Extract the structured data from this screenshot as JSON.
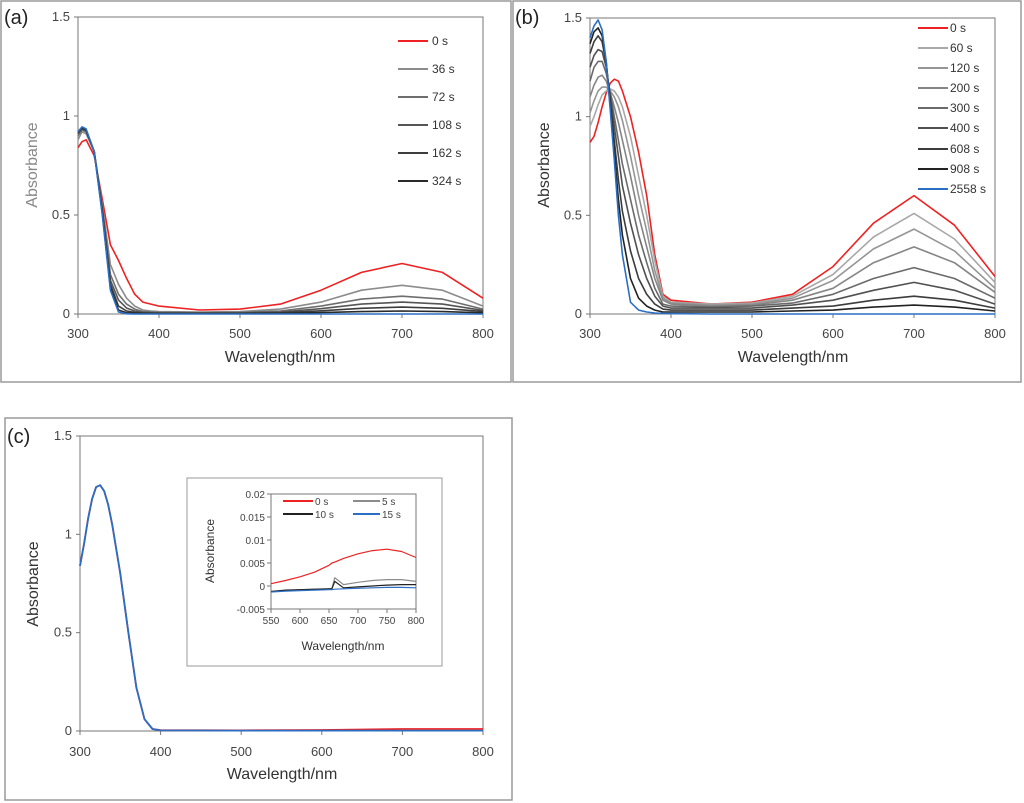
{
  "chart_data": [
    {
      "panel": "(a)",
      "type": "line",
      "xlabel": "Wavelength/nm",
      "ylabel": "Absorbance",
      "xlim": [
        300,
        800
      ],
      "ylim": [
        0,
        1.5
      ],
      "xticks": [
        "300",
        "400",
        "500",
        "600",
        "700",
        "800"
      ],
      "yticks": [
        "0",
        "0.5",
        "1",
        "1.5"
      ],
      "legend_position": "top-right",
      "x": [
        300,
        305,
        310,
        320,
        330,
        340,
        350,
        360,
        370,
        380,
        390,
        400,
        450,
        500,
        550,
        600,
        650,
        700,
        750,
        800
      ],
      "series": [
        {
          "name": "0 s",
          "color": "#ee2222",
          "values": [
            0.84,
            0.87,
            0.88,
            0.8,
            0.58,
            0.35,
            0.27,
            0.18,
            0.1,
            0.06,
            0.05,
            0.04,
            0.02,
            0.025,
            0.05,
            0.12,
            0.21,
            0.255,
            0.21,
            0.08
          ]
        },
        {
          "name": "36 s",
          "color": "#8c8c8c",
          "values": [
            0.88,
            0.92,
            0.91,
            0.82,
            0.55,
            0.25,
            0.15,
            0.08,
            0.04,
            0.02,
            0.015,
            0.012,
            0.01,
            0.012,
            0.025,
            0.06,
            0.12,
            0.145,
            0.12,
            0.04
          ]
        },
        {
          "name": "72 s",
          "color": "#6e6e6e",
          "values": [
            0.9,
            0.93,
            0.92,
            0.82,
            0.54,
            0.2,
            0.1,
            0.05,
            0.025,
            0.012,
            0.01,
            0.008,
            0.006,
            0.008,
            0.015,
            0.04,
            0.075,
            0.09,
            0.075,
            0.025
          ]
        },
        {
          "name": "108 s",
          "color": "#555555",
          "values": [
            0.91,
            0.935,
            0.925,
            0.82,
            0.53,
            0.17,
            0.07,
            0.03,
            0.015,
            0.008,
            0.006,
            0.005,
            0.004,
            0.005,
            0.01,
            0.027,
            0.05,
            0.06,
            0.05,
            0.018
          ]
        },
        {
          "name": "162 s",
          "color": "#3d3d3d",
          "values": [
            0.915,
            0.94,
            0.93,
            0.82,
            0.52,
            0.15,
            0.04,
            0.015,
            0.008,
            0.005,
            0.004,
            0.003,
            0.003,
            0.003,
            0.006,
            0.016,
            0.029,
            0.035,
            0.029,
            0.012
          ]
        },
        {
          "name": "324 s",
          "color": "#2a2a2a",
          "values": [
            0.92,
            0.94,
            0.93,
            0.82,
            0.51,
            0.13,
            0.02,
            0.006,
            0.004,
            0.003,
            0.002,
            0.002,
            0.002,
            0.002,
            0.003,
            0.007,
            0.012,
            0.015,
            0.012,
            0.006
          ]
        },
        {
          "name": "",
          "color": "#2a6fc4",
          "values": [
            0.92,
            0.945,
            0.935,
            0.82,
            0.5,
            0.12,
            0.01,
            0.001,
            0,
            0,
            0,
            0,
            0,
            0,
            0,
            0,
            0,
            0,
            0,
            0
          ]
        }
      ]
    },
    {
      "panel": "(b)",
      "type": "line",
      "xlabel": "Wavelength/nm",
      "ylabel": "Absorbance",
      "xlim": [
        300,
        800
      ],
      "ylim": [
        0,
        1.5
      ],
      "xticks": [
        "300",
        "400",
        "500",
        "600",
        "700",
        "800"
      ],
      "yticks": [
        "0",
        "0.5",
        "1",
        "1.5"
      ],
      "legend_position": "top-right",
      "x": [
        300,
        305,
        310,
        315,
        320,
        325,
        330,
        335,
        340,
        350,
        360,
        370,
        380,
        390,
        400,
        450,
        500,
        550,
        600,
        650,
        700,
        750,
        800
      ],
      "series": [
        {
          "name": "0 s",
          "color": "#ee2222",
          "values": [
            0.87,
            0.9,
            0.97,
            1.05,
            1.12,
            1.17,
            1.19,
            1.18,
            1.13,
            1.0,
            0.82,
            0.6,
            0.3,
            0.1,
            0.07,
            0.05,
            0.06,
            0.1,
            0.24,
            0.46,
            0.6,
            0.45,
            0.19
          ]
        },
        {
          "name": "60 s",
          "color": "#a8a8a8",
          "values": [
            0.95,
            1.0,
            1.06,
            1.11,
            1.13,
            1.14,
            1.13,
            1.1,
            1.05,
            0.9,
            0.7,
            0.5,
            0.27,
            0.09,
            0.06,
            0.05,
            0.055,
            0.09,
            0.2,
            0.39,
            0.51,
            0.38,
            0.16
          ]
        },
        {
          "name": "120 s",
          "color": "#959595",
          "values": [
            1.02,
            1.08,
            1.13,
            1.15,
            1.15,
            1.13,
            1.1,
            1.05,
            0.98,
            0.8,
            0.6,
            0.42,
            0.22,
            0.08,
            0.055,
            0.045,
            0.05,
            0.08,
            0.17,
            0.33,
            0.43,
            0.32,
            0.13
          ]
        },
        {
          "name": "200 s",
          "color": "#858585",
          "values": [
            1.1,
            1.16,
            1.2,
            1.21,
            1.18,
            1.12,
            1.05,
            0.97,
            0.88,
            0.7,
            0.5,
            0.34,
            0.18,
            0.07,
            0.05,
            0.04,
            0.045,
            0.07,
            0.13,
            0.26,
            0.34,
            0.26,
            0.11
          ]
        },
        {
          "name": "300 s",
          "color": "#6a6a6a",
          "values": [
            1.18,
            1.25,
            1.28,
            1.28,
            1.22,
            1.12,
            1.0,
            0.88,
            0.76,
            0.58,
            0.4,
            0.26,
            0.13,
            0.05,
            0.04,
            0.035,
            0.04,
            0.055,
            0.1,
            0.18,
            0.235,
            0.18,
            0.08
          ]
        },
        {
          "name": "400 s",
          "color": "#505050",
          "values": [
            1.25,
            1.31,
            1.34,
            1.33,
            1.25,
            1.1,
            0.95,
            0.8,
            0.65,
            0.46,
            0.3,
            0.18,
            0.09,
            0.04,
            0.03,
            0.03,
            0.03,
            0.045,
            0.07,
            0.12,
            0.16,
            0.12,
            0.05
          ]
        },
        {
          "name": "608 s",
          "color": "#3c3c3c",
          "values": [
            1.32,
            1.38,
            1.41,
            1.38,
            1.27,
            1.08,
            0.88,
            0.68,
            0.52,
            0.32,
            0.18,
            0.1,
            0.05,
            0.025,
            0.02,
            0.02,
            0.02,
            0.03,
            0.04,
            0.07,
            0.09,
            0.07,
            0.03
          ]
        },
        {
          "name": "908 s",
          "color": "#222222",
          "values": [
            1.37,
            1.43,
            1.45,
            1.41,
            1.28,
            1.05,
            0.82,
            0.58,
            0.4,
            0.18,
            0.08,
            0.04,
            0.02,
            0.01,
            0.01,
            0.01,
            0.01,
            0.015,
            0.02,
            0.035,
            0.045,
            0.035,
            0.015
          ]
        },
        {
          "name": "2558 s",
          "color": "#2a6fc4",
          "values": [
            1.4,
            1.46,
            1.49,
            1.44,
            1.28,
            1.03,
            0.78,
            0.5,
            0.3,
            0.06,
            0.02,
            0.01,
            0.005,
            0.003,
            0.002,
            0,
            0,
            0,
            0,
            0,
            0,
            0,
            0
          ]
        }
      ]
    },
    {
      "panel": "(c)",
      "type": "line",
      "xlabel": "Wavelength/nm",
      "ylabel": "Absorbance",
      "xlim": [
        300,
        800
      ],
      "ylim": [
        0,
        1.5
      ],
      "xticks": [
        "300",
        "400",
        "500",
        "600",
        "700",
        "800"
      ],
      "yticks": [
        "0",
        "0.5",
        "1",
        "1.5"
      ],
      "x": [
        300,
        305,
        310,
        315,
        320,
        325,
        330,
        335,
        340,
        350,
        360,
        370,
        380,
        390,
        400,
        500,
        600,
        700,
        800
      ],
      "series": [
        {
          "name": "",
          "color": "#ee2222",
          "values": [
            0.84,
            0.95,
            1.08,
            1.18,
            1.24,
            1.25,
            1.22,
            1.15,
            1.05,
            0.8,
            0.5,
            0.22,
            0.06,
            0.01,
            0.004,
            0.003,
            0.005,
            0.01,
            0.01
          ]
        },
        {
          "name": "",
          "color": "#2a6fc4",
          "values": [
            0.84,
            0.95,
            1.08,
            1.18,
            1.24,
            1.25,
            1.22,
            1.15,
            1.05,
            0.8,
            0.5,
            0.22,
            0.06,
            0.01,
            0.003,
            0.002,
            0.002,
            0.002,
            0.002
          ]
        }
      ]
    },
    {
      "panel": "(c) inset",
      "type": "line",
      "xlabel": "Wavelength/nm",
      "ylabel": "Absorbance",
      "xlim": [
        550,
        800
      ],
      "ylim": [
        -0.005,
        0.02
      ],
      "xticks": [
        "550",
        "600",
        "650",
        "700",
        "750",
        "800"
      ],
      "yticks": [
        "-0.005",
        "0",
        "0.005",
        "0.01",
        "0.015",
        "0.02"
      ],
      "legend_position": "top",
      "x": [
        550,
        575,
        600,
        625,
        650,
        655,
        660,
        675,
        700,
        725,
        750,
        775,
        800
      ],
      "series": [
        {
          "name": "0 s",
          "color": "#ee2222",
          "values": [
            0.0005,
            0.0012,
            0.002,
            0.003,
            0.0045,
            0.005,
            0.0052,
            0.006,
            0.007,
            0.0077,
            0.008,
            0.0075,
            0.0062
          ]
        },
        {
          "name": "5 s",
          "color": "#8c8c8c",
          "values": [
            -0.0012,
            -0.001,
            -0.0008,
            -0.0007,
            -0.0006,
            -0.0005,
            0.0018,
            0.0003,
            0.0008,
            0.0012,
            0.0014,
            0.0014,
            0.001
          ]
        },
        {
          "name": "10 s",
          "color": "#222222",
          "values": [
            -0.0012,
            -0.0009,
            -0.0008,
            -0.0007,
            -0.0006,
            -0.0006,
            0.001,
            -0.0004,
            -0.0002,
            0,
            0.0002,
            0.0003,
            0.0003
          ]
        },
        {
          "name": "15 s",
          "color": "#2a6fc4",
          "values": [
            -0.0013,
            -0.0011,
            -0.001,
            -0.0009,
            -0.0008,
            -0.0008,
            -0.0007,
            -0.0006,
            -0.0005,
            -0.0004,
            -0.0003,
            -0.0003,
            -0.0004
          ]
        }
      ]
    }
  ]
}
